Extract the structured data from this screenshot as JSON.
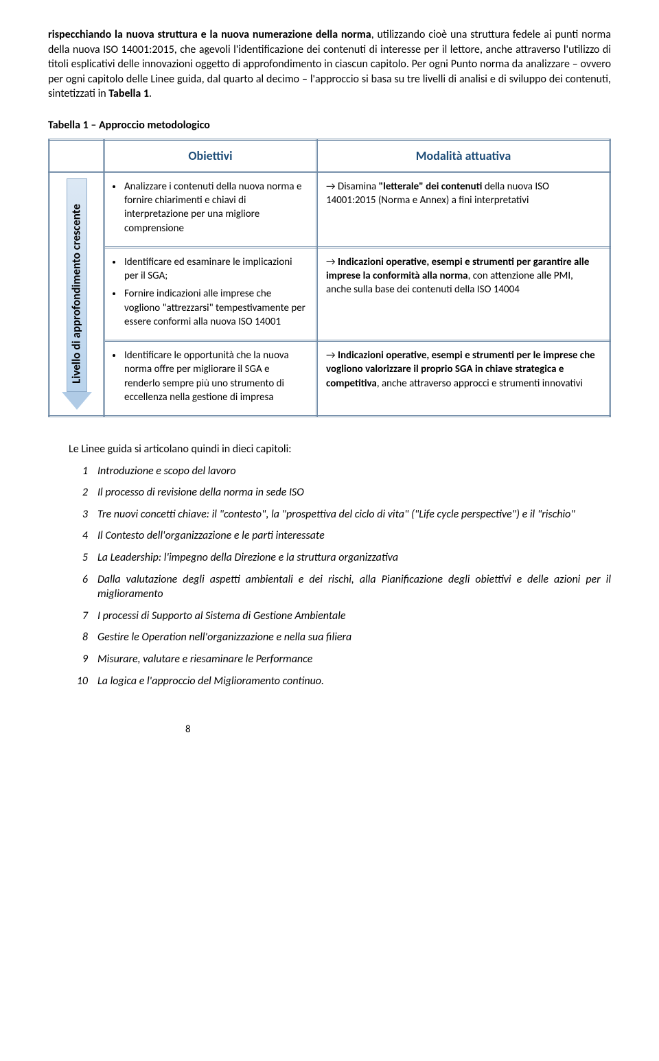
{
  "intro": {
    "highlight": "rispecchiando la nuova struttura e la nuova numerazione della norma",
    "body1": ", utilizzando cioè una struttura fedele ai punti norma della nuova ISO 14001:2015, che agevoli l'identificazione dei contenuti di interesse per il lettore, anche attraverso l'utilizzo di titoli esplicativi delle innovazioni oggetto di approfondimento in ciascun capitolo. Per ogni Punto norma da analizzare – ovvero per ogni capitolo delle Linee guida, dal quarto al decimo – l'approccio si basa su tre livelli di analisi e di sviluppo dei contenuti, sintetizzati in ",
    "tail_bold": "Tabella 1",
    "tail_after": "."
  },
  "table": {
    "caption": "Tabella 1 – Approccio metodologico",
    "header_obiettivi": "Obiettivi",
    "header_modalita": "Modalità attuativa",
    "side_label": "Livello di approfondimento  crescente",
    "rows": [
      {
        "obj": [
          "Analizzare i contenuti della nuova norma e fornire chiarimenti e chiavi di interpretazione per una migliore comprensione"
        ],
        "mod_pre": "→ Disamina ",
        "mod_b1": "\"letterale\" dei contenuti",
        "mod_post": " della nuova ISO 14001:2015 (Norma e Annex) a fini interpretativi"
      },
      {
        "obj": [
          "Identificare ed esaminare  le implicazioni per il SGA;",
          "Fornire indicazioni alle imprese che vogliono \"attrezzarsi\" tempestivamente per essere conformi alla nuova ISO 14001"
        ],
        "mod_pre": "→ ",
        "mod_b1": "Indicazioni operative, esempi e strumenti per garantire alle imprese la conformità alla norma",
        "mod_post": ", con attenzione alle PMI, anche sulla base dei contenuti della ISO 14004"
      },
      {
        "obj": [
          "Identificare le opportunità che la nuova norma offre per migliorare il SGA e renderlo sempre più uno strumento di eccellenza nella gestione di impresa"
        ],
        "mod_pre": "→ ",
        "mod_b1": "Indicazioni operative, esempi e strumenti per le imprese che vogliono  valorizzare il proprio SGA in chiave strategica e competitiva",
        "mod_post": ", anche attraverso approcci e strumenti innovativi"
      }
    ]
  },
  "chapters": {
    "intro": "Le Linee guida si articolano quindi in dieci capitoli:",
    "items": [
      {
        "n": "1",
        "t": "Introduzione e scopo del lavoro"
      },
      {
        "n": "2",
        "t": "Il processo di revisione della norma in sede ISO"
      },
      {
        "n": "3",
        "t": "Tre nuovi concetti chiave: il \"contesto\", la \"prospettiva del ciclo di vita\" (\"Life cycle perspective\") e il \"rischio\""
      },
      {
        "n": "4",
        "t": "Il Contesto dell'organizzazione e le parti interessate"
      },
      {
        "n": "5",
        "t": "La Leadership: l'impegno della Direzione e la struttura organizzativa"
      },
      {
        "n": "6",
        "t": "Dalla valutazione degli aspetti ambientali e dei rischi, alla Pianificazione degli obiettivi e delle azioni per il miglioramento"
      },
      {
        "n": "7",
        "t": "I processi di Supporto al Sistema di Gestione Ambientale"
      },
      {
        "n": "8",
        "t": "Gestire le Operation nell'organizzazione e nella sua filiera"
      },
      {
        "n": "9",
        "t": "Misurare, valutare e riesaminare le Performance"
      },
      {
        "n": "10",
        "t": "La logica e l'approccio del Miglioramento continuo."
      }
    ]
  },
  "page_number": "8",
  "colors": {
    "accent": "#1f4e79",
    "border": "#6f8aa6"
  }
}
